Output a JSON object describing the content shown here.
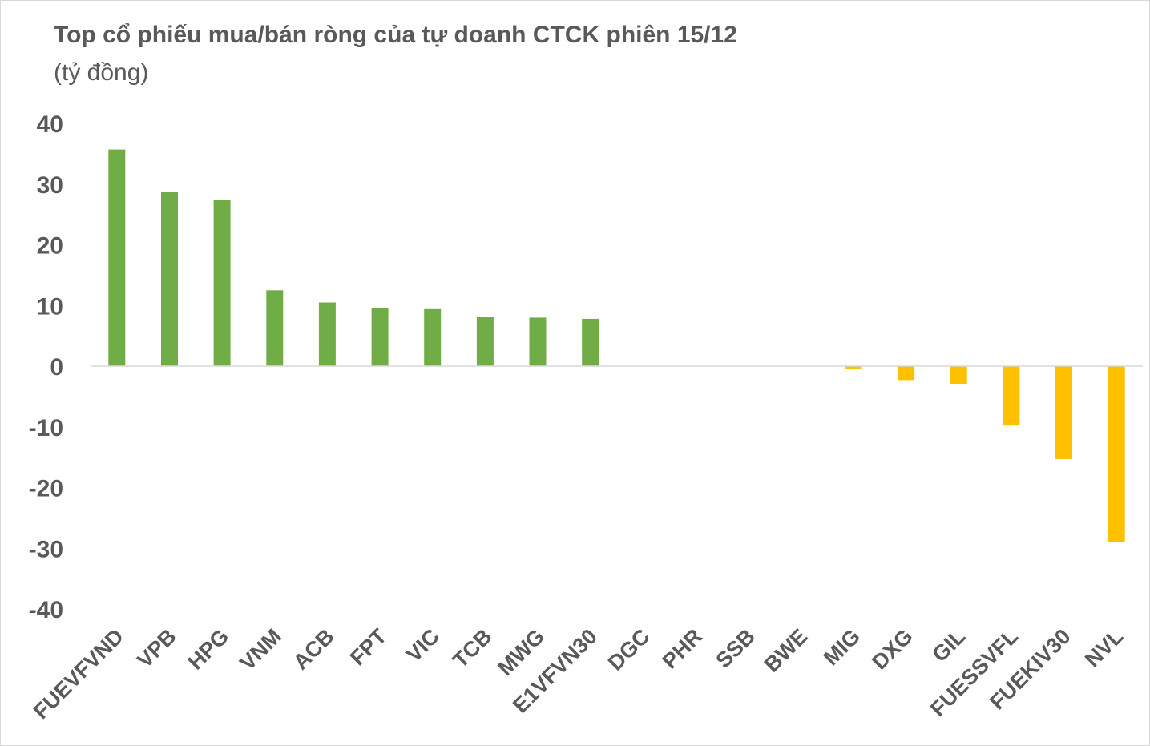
{
  "chart_data": {
    "type": "bar",
    "title": "Top cổ phiếu mua/bán ròng của tự doanh CTCK phiên 15/12",
    "subtitle": "(tỷ đồng)",
    "xlabel": "",
    "ylabel": "",
    "categories": [
      "FUEVFVND",
      "VPB",
      "HPG",
      "VNM",
      "ACB",
      "FPT",
      "VIC",
      "TCB",
      "MWG",
      "E1VFVN30",
      "DGC",
      "PHR",
      "SSB",
      "BWE",
      "MIG",
      "DXG",
      "GIL",
      "FUESSVFL",
      "FUEKIV30",
      "NVL"
    ],
    "values": [
      35.7,
      28.7,
      27.4,
      12.5,
      10.5,
      9.5,
      9.4,
      8.1,
      8.0,
      7.8,
      0.0,
      0.0,
      0.0,
      0.0,
      -0.4,
      -2.3,
      -2.9,
      -9.8,
      -15.3,
      -29.0
    ],
    "yticks": [
      "40",
      "30",
      "20",
      "10",
      "0",
      "-10",
      "-20",
      "-30",
      "-40"
    ],
    "ylim": [
      -40,
      40
    ],
    "grid": false,
    "legend": "none",
    "colors": {
      "positive": "#70ad47",
      "negative": "#ffc000",
      "text": "#595959",
      "axis": "#d9d9d9"
    }
  }
}
